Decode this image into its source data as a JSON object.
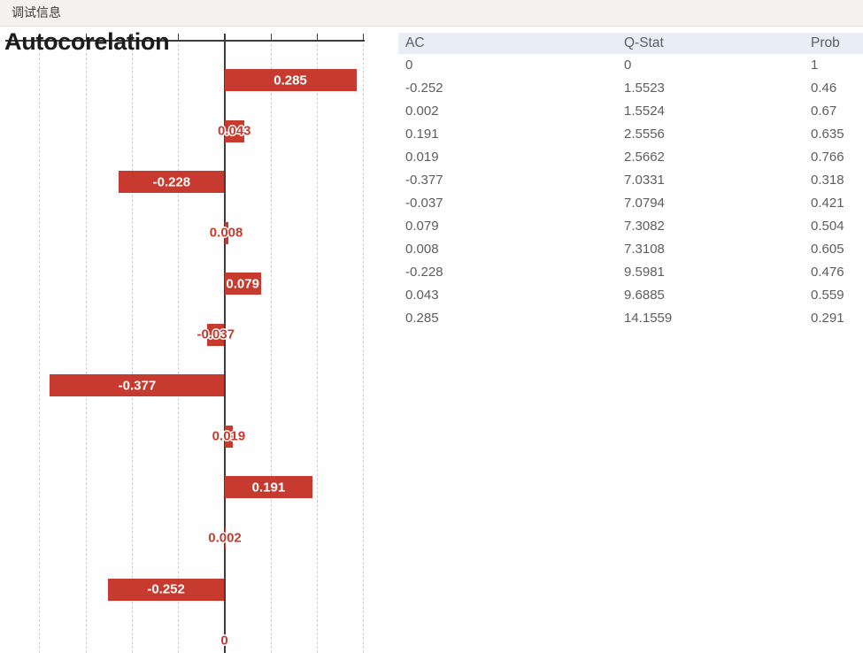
{
  "window": {
    "title": "调试信息"
  },
  "chart": {
    "title": "Autocorelation",
    "bar_color": "#c63a2f",
    "axis_color": "#3d3d3d",
    "gridline_color": "#d2d0d0",
    "label_inside_color": "#ffffff",
    "label_outside_color": "#c63a2f"
  },
  "chart_data": {
    "type": "bar",
    "orientation": "horizontal",
    "title": "Autocorelation",
    "values_top_to_bottom": [
      0.285,
      0.043,
      -0.228,
      0.008,
      0.079,
      -0.037,
      -0.377,
      0.019,
      0.191,
      0.002,
      -0.252,
      0
    ],
    "bar_labels": [
      "0.285",
      "0.043",
      "-0.228",
      "0.008",
      "0.079",
      "-0.037",
      "-0.377",
      "0.019",
      "0.191",
      "0.002",
      "-0.252",
      "0"
    ],
    "xlim": [
      -0.47,
      0.32
    ],
    "gridlines": [
      -0.4,
      -0.3,
      -0.2,
      -0.1,
      0,
      0.1,
      0.2,
      0.3
    ],
    "grid": "dashed-vertical",
    "zero_baseline": "solid-dark",
    "legend": "none"
  },
  "table": {
    "columns": [
      "AC",
      "Q-Stat",
      "Prob"
    ],
    "rows": [
      [
        "0",
        "0",
        "1"
      ],
      [
        "-0.252",
        "1.5523",
        "0.46"
      ],
      [
        "0.002",
        "1.5524",
        "0.67"
      ],
      [
        "0.191",
        "2.5556",
        "0.635"
      ],
      [
        "0.019",
        "2.5662",
        "0.766"
      ],
      [
        "-0.377",
        "7.0331",
        "0.318"
      ],
      [
        "-0.037",
        "7.0794",
        "0.421"
      ],
      [
        "0.079",
        "7.3082",
        "0.504"
      ],
      [
        "0.008",
        "7.3108",
        "0.605"
      ],
      [
        "-0.228",
        "9.5981",
        "0.476"
      ],
      [
        "0.043",
        "9.6885",
        "0.559"
      ],
      [
        "0.285",
        "14.1559",
        "0.291"
      ]
    ],
    "header_bg": "#e9edf6",
    "text_color": "#5f5d5b"
  }
}
